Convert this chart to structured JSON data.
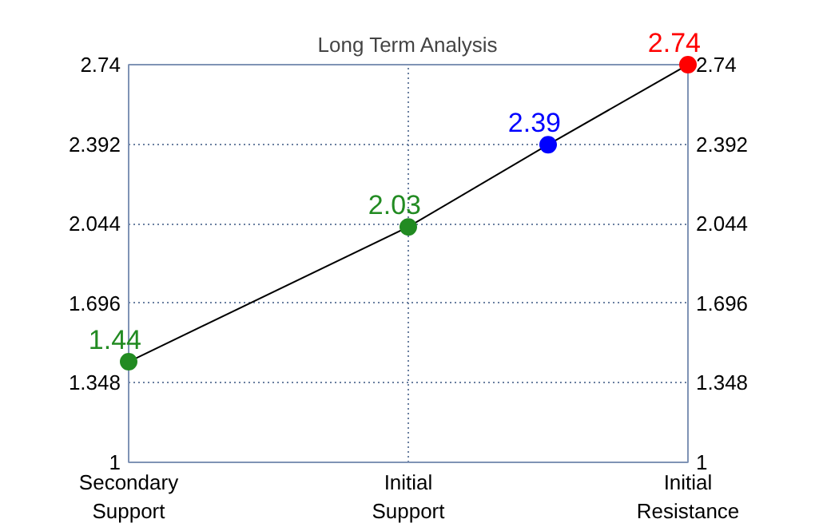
{
  "chart_data": {
    "type": "line",
    "title": "Long Term Analysis",
    "categories": [
      "Secondary Support",
      null,
      "Initial Support",
      null,
      "Initial Resistance"
    ],
    "values": [
      1.44,
      null,
      2.03,
      2.39,
      2.74
    ],
    "colors": [
      "#228b22",
      null,
      "#228b22",
      "#0000ff",
      "#ff0000"
    ],
    "ylim": [
      1,
      2.74
    ],
    "yticks": [
      1,
      1.348,
      1.696,
      2.044,
      2.392,
      2.74
    ],
    "y2lim": [
      1,
      2.74
    ],
    "y2ticks": [
      1,
      1.348,
      1.696,
      2.044,
      2.392,
      2.74
    ],
    "grid": true,
    "marker": "circle",
    "data_labels": true
  }
}
